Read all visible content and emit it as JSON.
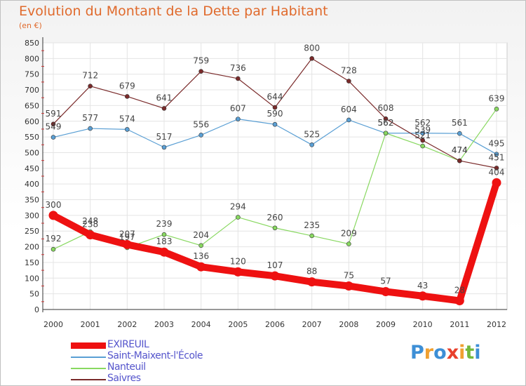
{
  "title": "Evolution du Montant de la Dette par Habitant",
  "subtitle": "(en €)",
  "logo": {
    "letters": [
      "P",
      "r",
      "o",
      "x",
      "i",
      "t",
      "i"
    ],
    "colors": [
      "#3d8fd6",
      "#f0a030",
      "#3d8fd6",
      "#e8402c",
      "#f0a030",
      "#74b83c",
      "#3d8fd6"
    ]
  },
  "chart_data": {
    "type": "line",
    "title": "Evolution du Montant de la Dette par Habitant",
    "subtitle": "(en €)",
    "xlabel": "",
    "ylabel": "",
    "x": [
      "2000",
      "2001",
      "2002",
      "2003",
      "2004",
      "2005",
      "2006",
      "2007",
      "2008",
      "2009",
      "2010",
      "2011",
      "2012"
    ],
    "ylim": [
      0,
      850
    ],
    "yticks": [
      0,
      50,
      100,
      150,
      200,
      250,
      300,
      350,
      400,
      450,
      500,
      550,
      600,
      650,
      700,
      750,
      800,
      850
    ],
    "grid": true,
    "legend_position": "bottom-left",
    "series": [
      {
        "name": "EXIREUIL",
        "color": "#ee1111",
        "highlight": true,
        "values": [
          300,
          238,
          207,
          183,
          136,
          120,
          107,
          88,
          75,
          57,
          43,
          28,
          404
        ],
        "labels": [
          "300",
          "238",
          "207",
          "183",
          "136",
          "120",
          "107",
          "88",
          "75",
          "57",
          "43",
          "28",
          "404"
        ]
      },
      {
        "name": "Saint-Maixent-l'École",
        "color": "#5a9fd4",
        "values": [
          549,
          577,
          574,
          517,
          556,
          607,
          590,
          525,
          604,
          562,
          562,
          561,
          495
        ],
        "labels": [
          "549",
          "577",
          "574",
          "517",
          "556",
          "607",
          "590",
          "525",
          "604",
          "562",
          "562",
          "561",
          "495"
        ]
      },
      {
        "name": "Nanteuil",
        "color": "#88d860",
        "values": [
          192,
          248,
          197,
          239,
          204,
          294,
          260,
          235,
          209,
          562,
          521,
          474,
          639
        ],
        "labels": [
          "192",
          "248",
          "197",
          "239",
          "204",
          "294",
          "260",
          "235",
          "209",
          "562",
          "521",
          "474",
          "639"
        ]
      },
      {
        "name": "Saivres",
        "color": "#7a2a2a",
        "values": [
          591,
          712,
          679,
          641,
          759,
          736,
          644,
          800,
          728,
          608,
          539,
          474,
          451
        ],
        "labels": [
          "591",
          "712",
          "679",
          "641",
          "759",
          "736",
          "644",
          "800",
          "728",
          "608",
          "539",
          "474",
          "451"
        ]
      }
    ]
  }
}
